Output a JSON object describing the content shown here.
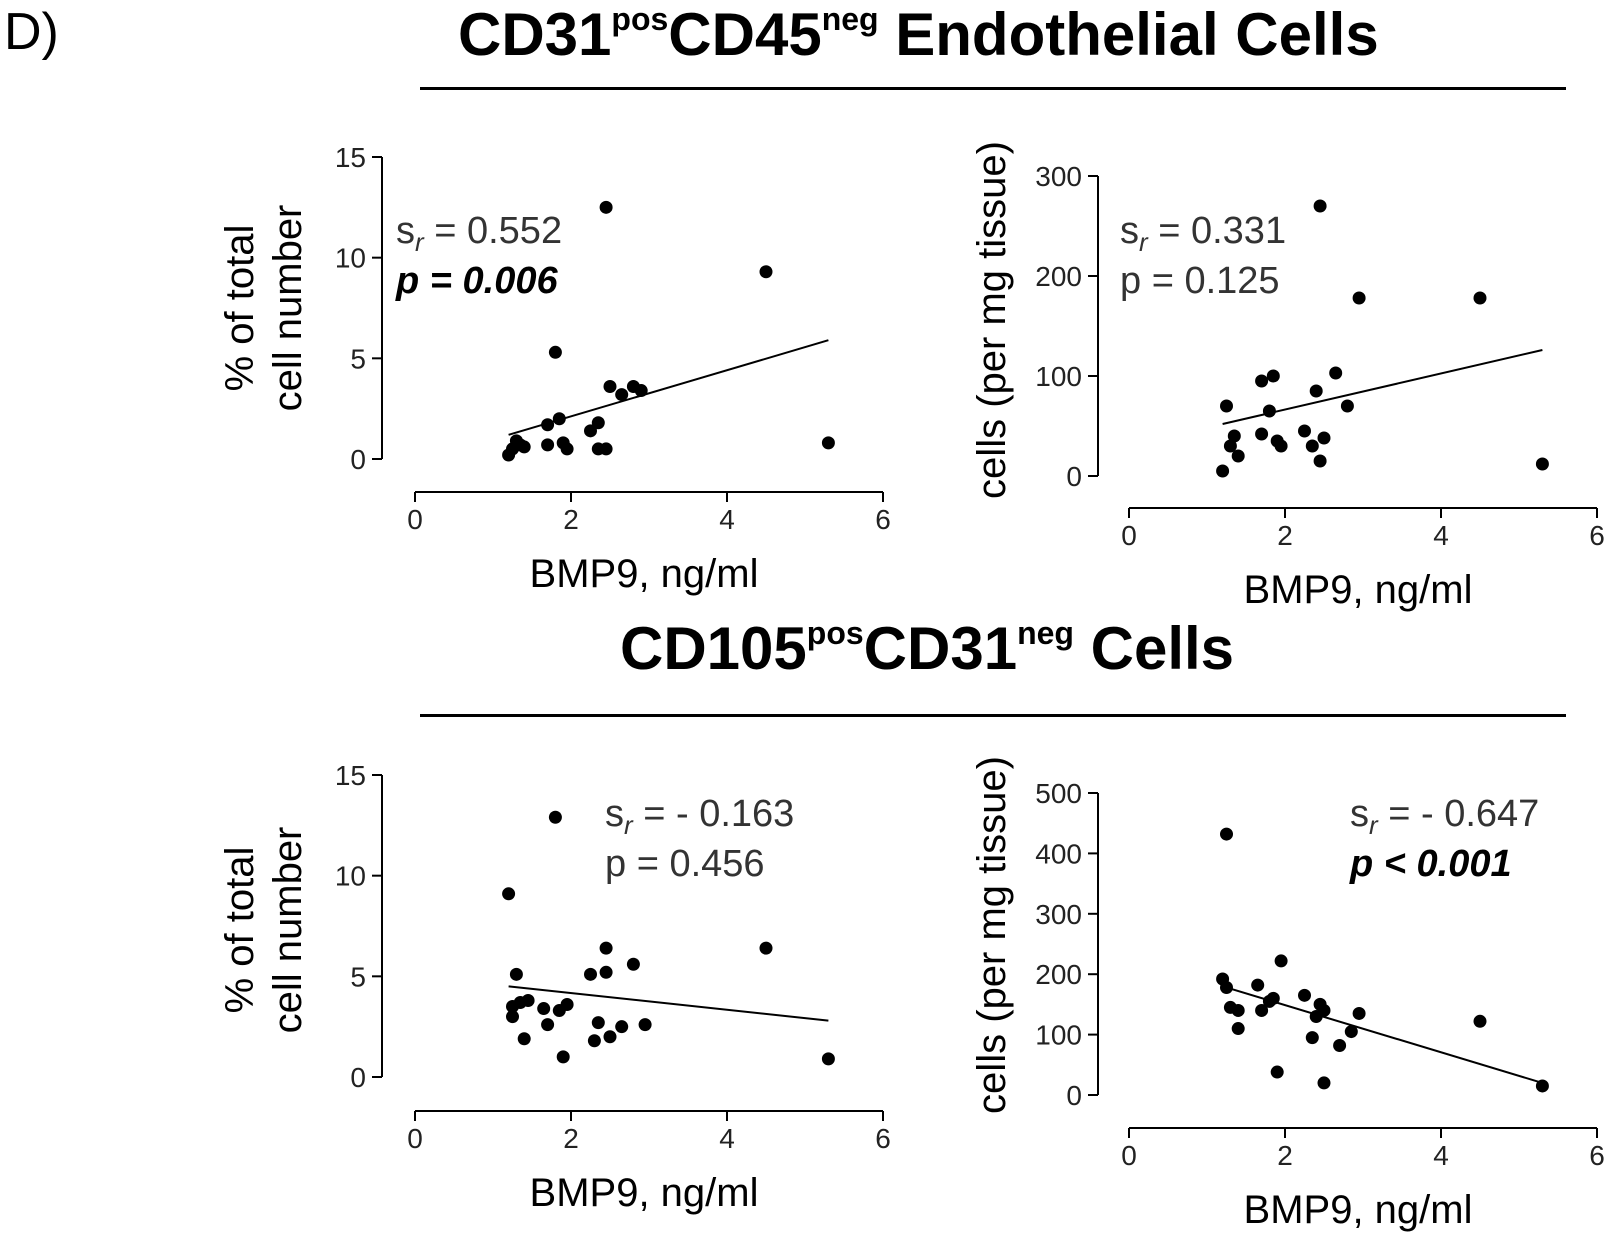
{
  "panel_label": "D)",
  "sections": [
    {
      "title_main": "CD31",
      "sup1": "pos",
      "mid": "CD45",
      "sup2": "neg",
      "tail": " Endothelial Cells"
    },
    {
      "title_main": "CD105",
      "sup1": "pos",
      "mid": "CD31",
      "sup2": "neg",
      "tail": " Cells"
    }
  ],
  "chart_data": [
    {
      "type": "scatter",
      "section": "CD31posCD45neg Endothelial Cells",
      "xlabel": "BMP9, ng/ml",
      "ylabel_lines": [
        "% of total",
        "cell number"
      ],
      "xlim": [
        0,
        6
      ],
      "ylim": [
        0,
        15
      ],
      "xticks": [
        "0",
        "2",
        "4",
        "6"
      ],
      "yticks": [
        "0",
        "5",
        "10",
        "15"
      ],
      "stat": {
        "s": "s",
        "r": "r",
        "rest": " = 0.552",
        "p": "p = 0.006",
        "p_bold": true
      },
      "fit": {
        "x": [
          1.2,
          5.3
        ],
        "y": [
          1.2,
          5.9
        ]
      },
      "points": [
        [
          1.2,
          0.2
        ],
        [
          1.25,
          0.5
        ],
        [
          1.3,
          0.9
        ],
        [
          1.35,
          0.7
        ],
        [
          1.4,
          0.6
        ],
        [
          1.7,
          0.7
        ],
        [
          1.7,
          1.7
        ],
        [
          1.8,
          5.3
        ],
        [
          1.85,
          2.0
        ],
        [
          1.9,
          0.8
        ],
        [
          1.95,
          0.5
        ],
        [
          2.25,
          1.4
        ],
        [
          2.35,
          1.8
        ],
        [
          2.35,
          0.5
        ],
        [
          2.45,
          12.5
        ],
        [
          2.45,
          0.5
        ],
        [
          2.5,
          3.6
        ],
        [
          2.65,
          3.2
        ],
        [
          2.8,
          3.6
        ],
        [
          2.9,
          3.4
        ],
        [
          4.5,
          9.3
        ],
        [
          5.3,
          0.8
        ]
      ]
    },
    {
      "type": "scatter",
      "section": "CD31posCD45neg Endothelial Cells",
      "xlabel": "BMP9, ng/ml",
      "ylabel_lines": [
        "cells (per mg tissue)"
      ],
      "xlim": [
        0,
        6
      ],
      "ylim": [
        0,
        300
      ],
      "xticks": [
        "0",
        "2",
        "4",
        "6"
      ],
      "yticks": [
        "0",
        "100",
        "200",
        "300"
      ],
      "stat": {
        "s": "s",
        "r": "r",
        "rest": " = 0.331",
        "p": "p = 0.125",
        "p_bold": false
      },
      "fit": {
        "x": [
          1.2,
          5.3
        ],
        "y": [
          52,
          126
        ]
      },
      "points": [
        [
          1.2,
          5
        ],
        [
          1.25,
          70
        ],
        [
          1.3,
          30
        ],
        [
          1.35,
          40
        ],
        [
          1.4,
          20
        ],
        [
          1.7,
          42
        ],
        [
          1.7,
          95
        ],
        [
          1.8,
          65
        ],
        [
          1.85,
          100
        ],
        [
          1.9,
          35
        ],
        [
          1.95,
          30
        ],
        [
          2.25,
          45
        ],
        [
          2.35,
          30
        ],
        [
          2.4,
          85
        ],
        [
          2.45,
          270
        ],
        [
          2.45,
          15
        ],
        [
          2.5,
          38
        ],
        [
          2.65,
          103
        ],
        [
          2.8,
          70
        ],
        [
          2.95,
          178
        ],
        [
          4.5,
          178
        ],
        [
          5.3,
          12
        ]
      ]
    },
    {
      "type": "scatter",
      "section": "CD105posCD31neg Cells",
      "xlabel": "BMP9, ng/ml",
      "ylabel_lines": [
        "% of total",
        "cell number"
      ],
      "xlim": [
        0,
        6
      ],
      "ylim": [
        0,
        15
      ],
      "xticks": [
        "0",
        "2",
        "4",
        "6"
      ],
      "yticks": [
        "0",
        "5",
        "10",
        "15"
      ],
      "stat": {
        "s": "s",
        "r": "r",
        "rest": " = - 0.163",
        "p": "p = 0.456",
        "p_bold": false
      },
      "fit": {
        "x": [
          1.2,
          5.3
        ],
        "y": [
          4.5,
          2.8
        ]
      },
      "points": [
        [
          1.2,
          9.1
        ],
        [
          1.25,
          3.5
        ],
        [
          1.25,
          3.0
        ],
        [
          1.3,
          5.1
        ],
        [
          1.35,
          3.7
        ],
        [
          1.4,
          1.9
        ],
        [
          1.45,
          3.8
        ],
        [
          1.65,
          3.4
        ],
        [
          1.7,
          2.6
        ],
        [
          1.8,
          12.9
        ],
        [
          1.85,
          3.3
        ],
        [
          1.9,
          1.0
        ],
        [
          1.95,
          3.6
        ],
        [
          2.25,
          5.1
        ],
        [
          2.3,
          1.8
        ],
        [
          2.35,
          2.7
        ],
        [
          2.45,
          6.4
        ],
        [
          2.45,
          5.2
        ],
        [
          2.5,
          2.0
        ],
        [
          2.65,
          2.5
        ],
        [
          2.8,
          5.6
        ],
        [
          2.95,
          2.6
        ],
        [
          4.5,
          6.4
        ],
        [
          5.3,
          0.9
        ]
      ]
    },
    {
      "type": "scatter",
      "section": "CD105posCD31neg Cells",
      "xlabel": "BMP9, ng/ml",
      "ylabel_lines": [
        "cells (per mg tissue)"
      ],
      "xlim": [
        0,
        6
      ],
      "ylim": [
        0,
        500
      ],
      "xticks": [
        "0",
        "2",
        "4",
        "6"
      ],
      "yticks": [
        "0",
        "100",
        "200",
        "300",
        "400",
        "500"
      ],
      "stat": {
        "s": "s",
        "r": "r",
        "rest": " = - 0.647",
        "p": "p < 0.001",
        "p_bold": true
      },
      "fit": {
        "x": [
          1.2,
          5.3
        ],
        "y": [
          180,
          20
        ]
      },
      "points": [
        [
          1.2,
          192
        ],
        [
          1.25,
          432
        ],
        [
          1.25,
          178
        ],
        [
          1.3,
          145
        ],
        [
          1.4,
          140
        ],
        [
          1.4,
          110
        ],
        [
          1.65,
          182
        ],
        [
          1.7,
          140
        ],
        [
          1.8,
          155
        ],
        [
          1.85,
          160
        ],
        [
          1.9,
          38
        ],
        [
          1.95,
          222
        ],
        [
          2.25,
          165
        ],
        [
          2.35,
          95
        ],
        [
          2.4,
          130
        ],
        [
          2.45,
          150
        ],
        [
          2.5,
          140
        ],
        [
          2.5,
          20
        ],
        [
          2.7,
          82
        ],
        [
          2.85,
          105
        ],
        [
          2.95,
          135
        ],
        [
          4.5,
          122
        ],
        [
          5.3,
          15
        ]
      ]
    }
  ]
}
